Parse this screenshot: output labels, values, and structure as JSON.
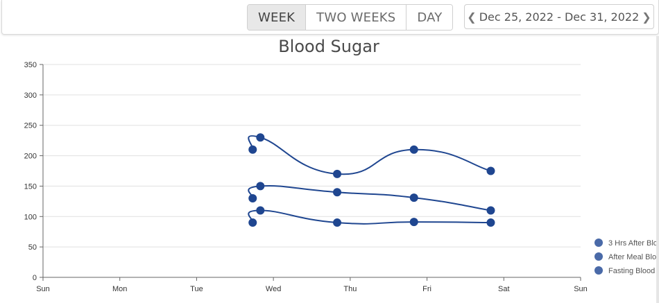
{
  "controls": {
    "views": [
      "WEEK",
      "TWO WEEKS",
      "DAY"
    ],
    "active_view": "WEEK",
    "date_range": "Dec 25, 2022 - Dec 31, 2022"
  },
  "colors": {
    "series": "#1f4690",
    "legend_dot": "#4a6aa8",
    "grid": "#e0e0e0"
  },
  "chart_data": {
    "type": "line",
    "title": "Blood Sugar",
    "xlabel": "",
    "ylabel": "",
    "x_ticks": [
      "Sun",
      "Mon",
      "Tue",
      "Wed",
      "Thu",
      "Fri",
      "Sat",
      "Sun"
    ],
    "ylim": [
      0,
      350
    ],
    "y_ticks": [
      0,
      50,
      100,
      150,
      200,
      250,
      300,
      350
    ],
    "grid": true,
    "legend_position": "right",
    "x_unit": "days from start of week (0 = Sun Dec 25)",
    "series": [
      {
        "name": "3 Hrs After Blo",
        "points": [
          [
            2.73,
            210
          ],
          [
            2.83,
            230
          ],
          [
            3.83,
            170
          ],
          [
            4.83,
            210
          ],
          [
            5.83,
            175
          ]
        ]
      },
      {
        "name": "After Meal Blo",
        "points": [
          [
            2.73,
            130
          ],
          [
            2.83,
            150
          ],
          [
            3.83,
            140
          ],
          [
            4.83,
            131
          ],
          [
            5.83,
            110
          ]
        ]
      },
      {
        "name": "Fasting Blood",
        "points": [
          [
            2.73,
            90
          ],
          [
            2.83,
            110
          ],
          [
            3.83,
            90
          ],
          [
            4.83,
            91
          ],
          [
            5.83,
            90
          ]
        ]
      }
    ]
  }
}
